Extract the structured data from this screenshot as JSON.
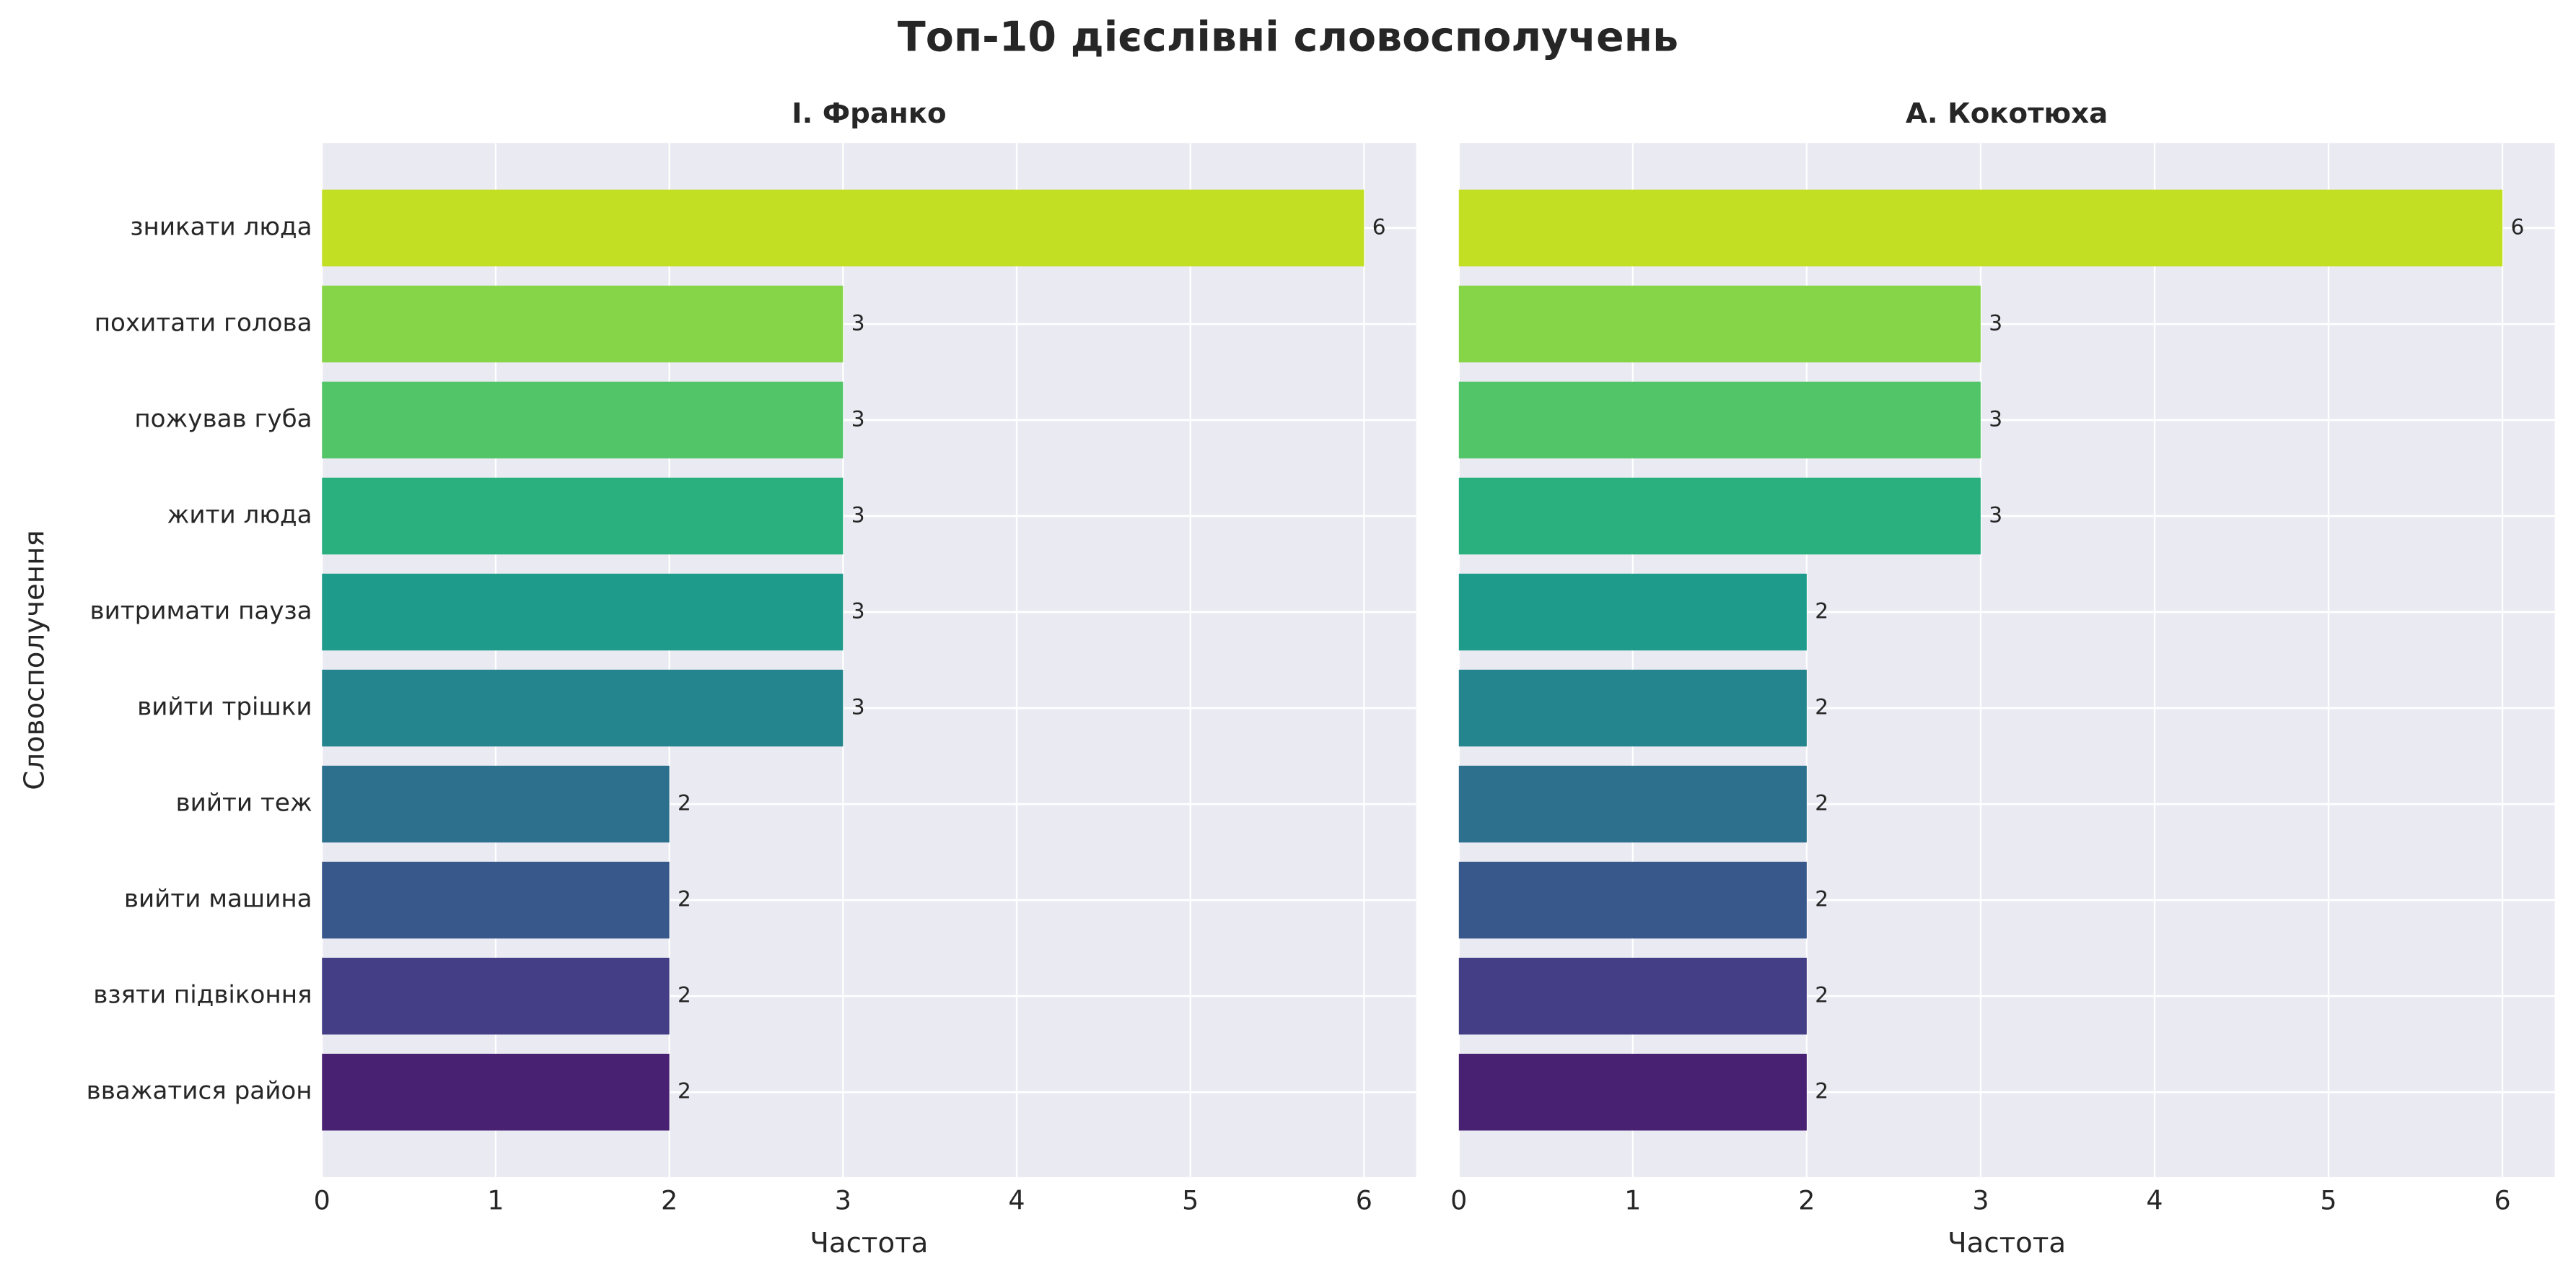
{
  "title": "Топ-10 дієслівні словосполучень",
  "chart_data": [
    {
      "type": "bar",
      "orientation": "horizontal",
      "title": "І. Франко",
      "categories": [
        "зникати люда",
        "похитати голова",
        "пожував губа",
        "жити люда",
        "витримати пауза",
        "вийти трішки",
        "вийти теж",
        "вийти машина",
        "взяти підвіконня",
        "вважатися район"
      ],
      "values": [
        6,
        3,
        3,
        3,
        3,
        3,
        2,
        2,
        2,
        2
      ],
      "colors": [
        "#c2df23",
        "#86d549",
        "#52c569",
        "#2ab07f",
        "#1e9b8a",
        "#25858e",
        "#2d708e",
        "#38588c",
        "#433e85",
        "#482173"
      ],
      "xlim": [
        0,
        6.3
      ],
      "xticks": [
        0,
        1,
        2,
        3,
        4,
        5,
        6
      ],
      "xlabel": "Частота",
      "ylabel": "Словосполучення",
      "grid": true
    },
    {
      "type": "bar",
      "orientation": "horizontal",
      "title": "А. Кокотюха",
      "values": [
        6,
        3,
        3,
        3,
        2,
        2,
        2,
        2,
        2,
        2
      ],
      "colors": [
        "#c2df23",
        "#86d549",
        "#52c569",
        "#2ab07f",
        "#1e9b8a",
        "#25858e",
        "#2d708e",
        "#38588c",
        "#433e85",
        "#482173"
      ],
      "xlim": [
        0,
        6.3
      ],
      "xticks": [
        0,
        1,
        2,
        3,
        4,
        5,
        6
      ],
      "xlabel": "Частота",
      "grid": true
    }
  ]
}
